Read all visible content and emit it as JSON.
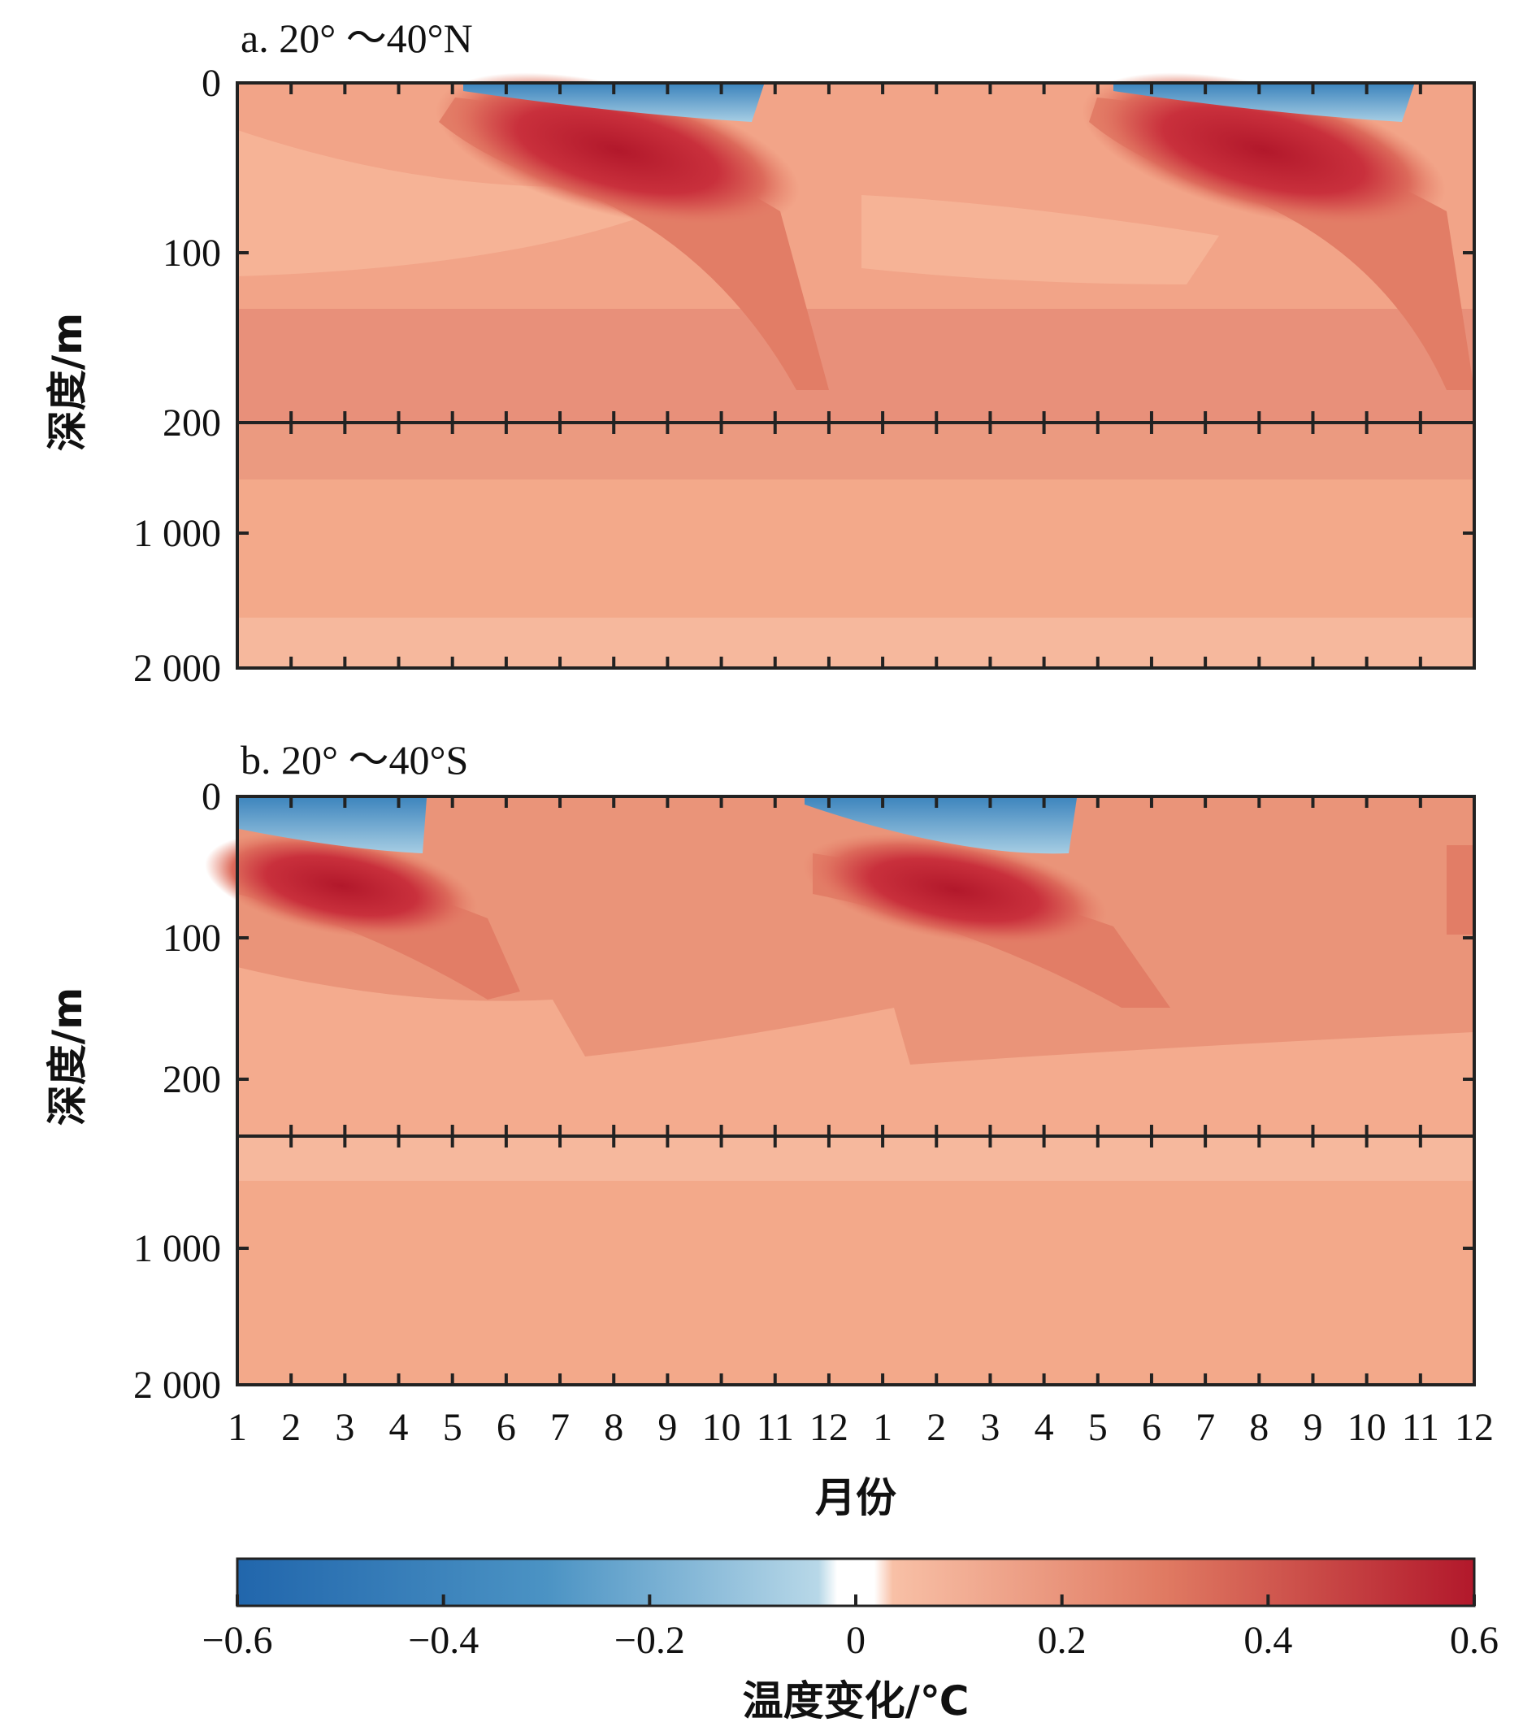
{
  "chart_data": [
    {
      "type": "heatmap",
      "title": "a. 20° ～40°N",
      "ylabel": "深度/m",
      "x_ticks": [
        "1",
        "2",
        "3",
        "4",
        "5",
        "6",
        "7",
        "8",
        "9",
        "10",
        "11",
        "12",
        "1",
        "2",
        "3",
        "4",
        "5",
        "6",
        "7",
        "8",
        "9",
        "10",
        "11",
        "12"
      ],
      "y_upper_ticks": [
        "0",
        "100",
        "200"
      ],
      "y_lower_ticks": [
        "1 000",
        "2 000"
      ],
      "upper_depth_range": [
        0,
        200
      ],
      "lower_depth_range": [
        200,
        2000
      ],
      "features": [
        {
          "kind": "negative_surface",
          "month_start": 5.5,
          "month_end": 10.5,
          "depth_min": 0,
          "depth_max": 20,
          "value": -0.2
        },
        {
          "kind": "positive_core",
          "month_start": 6.5,
          "month_end": 10.0,
          "depth_min": 20,
          "depth_max": 60,
          "value": 0.55
        },
        {
          "kind": "negative_surface",
          "month_start": 17.5,
          "month_end": 22.5,
          "depth_min": 0,
          "depth_max": 20,
          "value": -0.2
        },
        {
          "kind": "positive_core",
          "month_start": 18.5,
          "month_end": 22.0,
          "depth_min": 20,
          "depth_max": 60,
          "value": 0.55
        }
      ],
      "background_value_upper": 0.2,
      "background_value_lower": 0.15
    },
    {
      "type": "heatmap",
      "title": "b. 20° ～40°S",
      "ylabel": "深度/m",
      "x_ticks": [
        "1",
        "2",
        "3",
        "4",
        "5",
        "6",
        "7",
        "8",
        "9",
        "10",
        "11",
        "12",
        "1",
        "2",
        "3",
        "4",
        "5",
        "6",
        "7",
        "8",
        "9",
        "10",
        "11",
        "12"
      ],
      "y_upper_ticks": [
        "0",
        "100",
        "200"
      ],
      "y_lower_ticks": [
        "1 000",
        "2 000"
      ],
      "upper_depth_range": [
        0,
        240
      ],
      "lower_depth_range": [
        240,
        2000
      ],
      "features": [
        {
          "kind": "negative_surface",
          "month_start": 1.0,
          "month_end": 4.5,
          "depth_min": 0,
          "depth_max": 30,
          "value": -0.2
        },
        {
          "kind": "positive_core",
          "month_start": 1.0,
          "month_end": 4.0,
          "depth_min": 40,
          "depth_max": 90,
          "value": 0.55
        },
        {
          "kind": "negative_surface",
          "month_start": 12.0,
          "month_end": 16.5,
          "depth_min": 0,
          "depth_max": 30,
          "value": -0.2
        },
        {
          "kind": "positive_core",
          "month_start": 12.5,
          "month_end": 16.0,
          "depth_min": 40,
          "depth_max": 90,
          "value": 0.55
        }
      ],
      "background_value_upper": 0.2,
      "background_value_lower": 0.15
    }
  ],
  "xlabel": "月份",
  "colorbar": {
    "label": "温度变化/℃",
    "ticks": [
      "−0.6",
      "−0.4",
      "−0.2",
      "0",
      "0.2",
      "0.4",
      "0.6"
    ],
    "range": [
      -0.6,
      0.6
    ],
    "colors": {
      "neg_strong": "#2166ac",
      "neg_light": "#a6cde3",
      "zero": "#ffffff",
      "pos_light": "#f6b79b",
      "pos_mid": "#e6826b",
      "pos_strong": "#b2182b"
    }
  }
}
